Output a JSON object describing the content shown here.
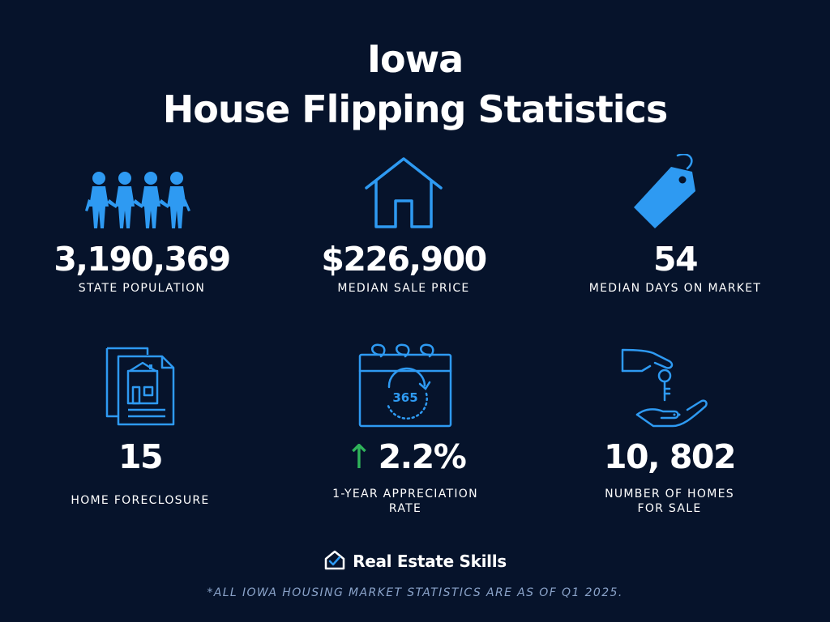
{
  "header": {
    "title_line1": "Iowa",
    "title_line2": "House Flipping Statistics"
  },
  "stats": [
    {
      "icon": "people-icon",
      "value": "3,190,369",
      "label": "STATE POPULATION"
    },
    {
      "icon": "house-icon",
      "value": "$226,900",
      "label": "MEDIAN SALE PRICE"
    },
    {
      "icon": "price-tag-icon",
      "value": "54",
      "label": "MEDIAN DAYS ON MARKET"
    },
    {
      "icon": "foreclosure-document-icon",
      "value": "15",
      "label": "HOME FORECLOSURE"
    },
    {
      "icon": "calendar-365-icon",
      "value": "2.2%",
      "arrow": "↑",
      "label_line1": "1-YEAR APPRECIATION",
      "label_line2": "RATE"
    },
    {
      "icon": "hand-key-icon",
      "value": "10, 802",
      "label_line1": "NUMBER OF HOMES",
      "label_line2": "FOR SALE"
    }
  ],
  "brand": {
    "name": "Real Estate Skills",
    "icon": "house-check-logo-icon"
  },
  "footnote": "*ALL IOWA HOUSING MARKET STATISTICS ARE AS OF Q1 2025.",
  "colors": {
    "background": "#06132b",
    "icon_blue": "#2e9af2",
    "arrow_green": "#2fb35a",
    "footnote": "#8aa3c9"
  },
  "calendar_icon_text": "365"
}
